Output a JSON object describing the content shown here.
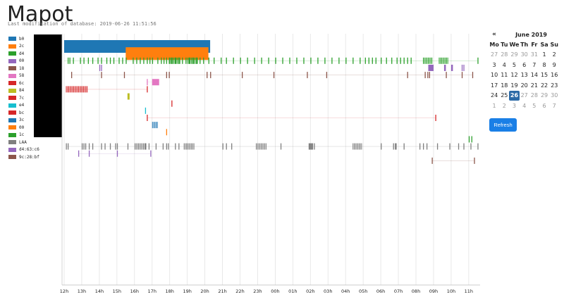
{
  "header": {
    "title": "Mapot",
    "subtitle": "Last modification of database: 2019-06-26 11:51:56"
  },
  "legend": [
    {
      "label": "b0",
      "color": "#1f77b4"
    },
    {
      "label": "2c",
      "color": "#ff7f0e"
    },
    {
      "label": "d4",
      "color": "#2ca02c"
    },
    {
      "label": "00",
      "color": "#9467bd"
    },
    {
      "label": "18",
      "color": "#8c564b"
    },
    {
      "label": "58",
      "color": "#e377c2"
    },
    {
      "label": "6c",
      "color": "#d62728"
    },
    {
      "label": "84",
      "color": "#bcbd22"
    },
    {
      "label": "7c",
      "color": "#d62728"
    },
    {
      "label": "e4",
      "color": "#17becf"
    },
    {
      "label": "bc",
      "color": "#d62728"
    },
    {
      "label": "3c",
      "color": "#1f77b4"
    },
    {
      "label": "00",
      "color": "#ff7f0e"
    },
    {
      "label": "1c",
      "color": "#2ca02c"
    },
    {
      "label": "LAA",
      "color": "#7f7f7f"
    },
    {
      "label": "d4:63:c6",
      "color": "#9467bd"
    },
    {
      "label": "9c:28:bf",
      "color": "#8c564b"
    }
  ],
  "chart_data": {
    "type": "timeline",
    "x_ticks": [
      "12h",
      "13h",
      "14h",
      "15h",
      "16h",
      "17h",
      "18h",
      "19h",
      "20h",
      "21h",
      "22h",
      "23h",
      "00h",
      "01h",
      "02h",
      "03h",
      "04h",
      "05h",
      "06h",
      "07h",
      "08h",
      "09h",
      "10h",
      "11h"
    ],
    "grid": true,
    "lanes": [
      {
        "color": "#1f77b4",
        "blocks": [
          [
            12.0,
            20.3
          ]
        ]
      },
      {
        "color": "#ff7f0e",
        "blocks": [
          [
            15.5,
            20.2
          ]
        ]
      },
      {
        "color": "#2ca02c",
        "ticks": [
          12.2,
          12.3,
          12.5,
          12.9,
          13.1,
          13.35,
          13.6,
          13.9,
          14.1,
          14.4,
          14.6,
          14.8,
          15.1,
          15.3,
          15.5,
          15.9,
          16.1,
          16.3,
          16.5,
          16.7,
          16.85,
          17.0,
          17.3,
          17.5,
          17.65,
          17.8,
          17.95,
          18.1,
          18.3,
          18.5,
          18.7,
          18.9,
          19.1,
          19.3,
          19.5,
          19.7,
          19.9,
          20.2,
          20.5,
          20.9,
          21.2,
          21.6,
          22.0,
          22.4,
          22.8,
          23.2,
          23.6,
          24.0,
          24.4,
          24.8,
          25.2,
          25.6,
          26.0,
          26.4,
          26.8,
          27.2,
          27.6,
          28.0,
          28.4,
          28.8,
          29.1,
          29.3,
          29.5,
          29.7,
          30.0,
          30.3,
          30.6,
          30.9,
          31.1,
          31.3,
          31.5,
          31.7,
          35.5
        ],
        "dense": [
          [
            18.0,
            18.6
          ],
          [
            19.0,
            19.6
          ],
          [
            32.4,
            32.9
          ],
          [
            33.3,
            33.8
          ]
        ],
        "line": [
          12.0,
          35.5
        ]
      },
      {
        "color": "#9467bd",
        "ticks": [
          14.0,
          14.1,
          34.6,
          34.7
        ],
        "blocks": [
          [
            32.7,
            33.0
          ],
          [
            33.6,
            33.7
          ],
          [
            34.0,
            34.1
          ]
        ]
      },
      {
        "color": "#8c564b",
        "ticks": [
          12.4,
          14.1,
          15.4,
          17.8,
          17.95,
          20.1,
          20.3,
          22.1,
          23.9,
          25.8,
          26.9,
          31.5,
          32.5,
          32.65,
          32.75,
          33.7,
          34.6,
          35.2
        ],
        "line": [
          12.4,
          35.2
        ]
      },
      {
        "color": "#e377c2",
        "ticks": [
          16.7
        ],
        "blocks": [
          [
            17.0,
            17.4
          ]
        ],
        "line": [
          16.7,
          17.4
        ]
      },
      {
        "color": "#d62728",
        "ticks": [
          16.7
        ],
        "dense": [
          [
            12.1,
            13.3
          ]
        ],
        "line": [
          12.1,
          16.7
        ]
      },
      {
        "color": "#bcbd22",
        "blocks": [
          [
            15.6,
            15.72
          ]
        ]
      },
      {
        "color": "#d62728",
        "ticks": [
          18.1
        ]
      },
      {
        "color": "#17becf",
        "ticks": [
          16.6
        ]
      },
      {
        "color": "#d62728",
        "ticks": [
          16.7,
          33.1
        ],
        "line": [
          16.7,
          33.1
        ]
      },
      {
        "color": "#1f77b4",
        "dense": [
          [
            17.0,
            17.3
          ]
        ]
      },
      {
        "color": "#ff7f0e",
        "ticks": [
          17.8
        ]
      },
      {
        "color": "#2ca02c",
        "ticks": [
          35.0,
          35.15
        ]
      },
      {
        "color": "#7f7f7f",
        "ticks": [
          12.1,
          12.2,
          13.0,
          13.1,
          13.2,
          13.4,
          13.6,
          14.1,
          14.3,
          14.6,
          14.9,
          15.0,
          15.6,
          16.6,
          16.8,
          17.2,
          17.6,
          17.8,
          17.9,
          18.3,
          18.5,
          21.0,
          21.2,
          21.5,
          24.3,
          25.9,
          25.95,
          26.0,
          26.05,
          26.1,
          26.2,
          30.0,
          30.7,
          30.8,
          30.85,
          31.3,
          32.2,
          32.4,
          32.6,
          33.2,
          33.9,
          34.4,
          34.7,
          35.1,
          35.5
        ],
        "dense": [
          [
            16.0,
            16.7
          ],
          [
            18.8,
            19.4
          ],
          [
            22.9,
            23.5
          ],
          [
            28.4,
            28.9
          ]
        ],
        "line": [
          12.1,
          35.5
        ]
      },
      {
        "color": "#9467bd",
        "ticks": [
          12.8,
          13.4,
          15.0,
          16.9
        ],
        "line": [
          12.8,
          16.9
        ]
      },
      {
        "color": "#8c564b",
        "ticks": [
          32.9,
          35.3
        ],
        "line": [
          32.9,
          35.3
        ]
      }
    ]
  },
  "calendar": {
    "prev": "«",
    "month": "June 2019",
    "weekdays": [
      "Mo",
      "Tu",
      "We",
      "Th",
      "Fr",
      "Sa",
      "Su"
    ],
    "days": [
      {
        "d": "27",
        "m": true
      },
      {
        "d": "28",
        "m": true
      },
      {
        "d": "29",
        "m": true
      },
      {
        "d": "30",
        "m": true
      },
      {
        "d": "31",
        "m": true
      },
      {
        "d": "1"
      },
      {
        "d": "2"
      },
      {
        "d": "3"
      },
      {
        "d": "4"
      },
      {
        "d": "5"
      },
      {
        "d": "6"
      },
      {
        "d": "7"
      },
      {
        "d": "8"
      },
      {
        "d": "9"
      },
      {
        "d": "10"
      },
      {
        "d": "11"
      },
      {
        "d": "12"
      },
      {
        "d": "13"
      },
      {
        "d": "14"
      },
      {
        "d": "15"
      },
      {
        "d": "16"
      },
      {
        "d": "17"
      },
      {
        "d": "18"
      },
      {
        "d": "19"
      },
      {
        "d": "20"
      },
      {
        "d": "21"
      },
      {
        "d": "22"
      },
      {
        "d": "23"
      },
      {
        "d": "24"
      },
      {
        "d": "25"
      },
      {
        "d": "26",
        "today": true
      },
      {
        "d": "27",
        "m": true
      },
      {
        "d": "28",
        "m": true
      },
      {
        "d": "29",
        "m": true
      },
      {
        "d": "30",
        "m": true
      },
      {
        "d": "1",
        "m": true
      },
      {
        "d": "2",
        "m": true
      },
      {
        "d": "3",
        "m": true
      },
      {
        "d": "4",
        "m": true
      },
      {
        "d": "5",
        "m": true
      },
      {
        "d": "6",
        "m": true
      },
      {
        "d": "7",
        "m": true
      }
    ]
  },
  "refresh_label": "Refresh"
}
